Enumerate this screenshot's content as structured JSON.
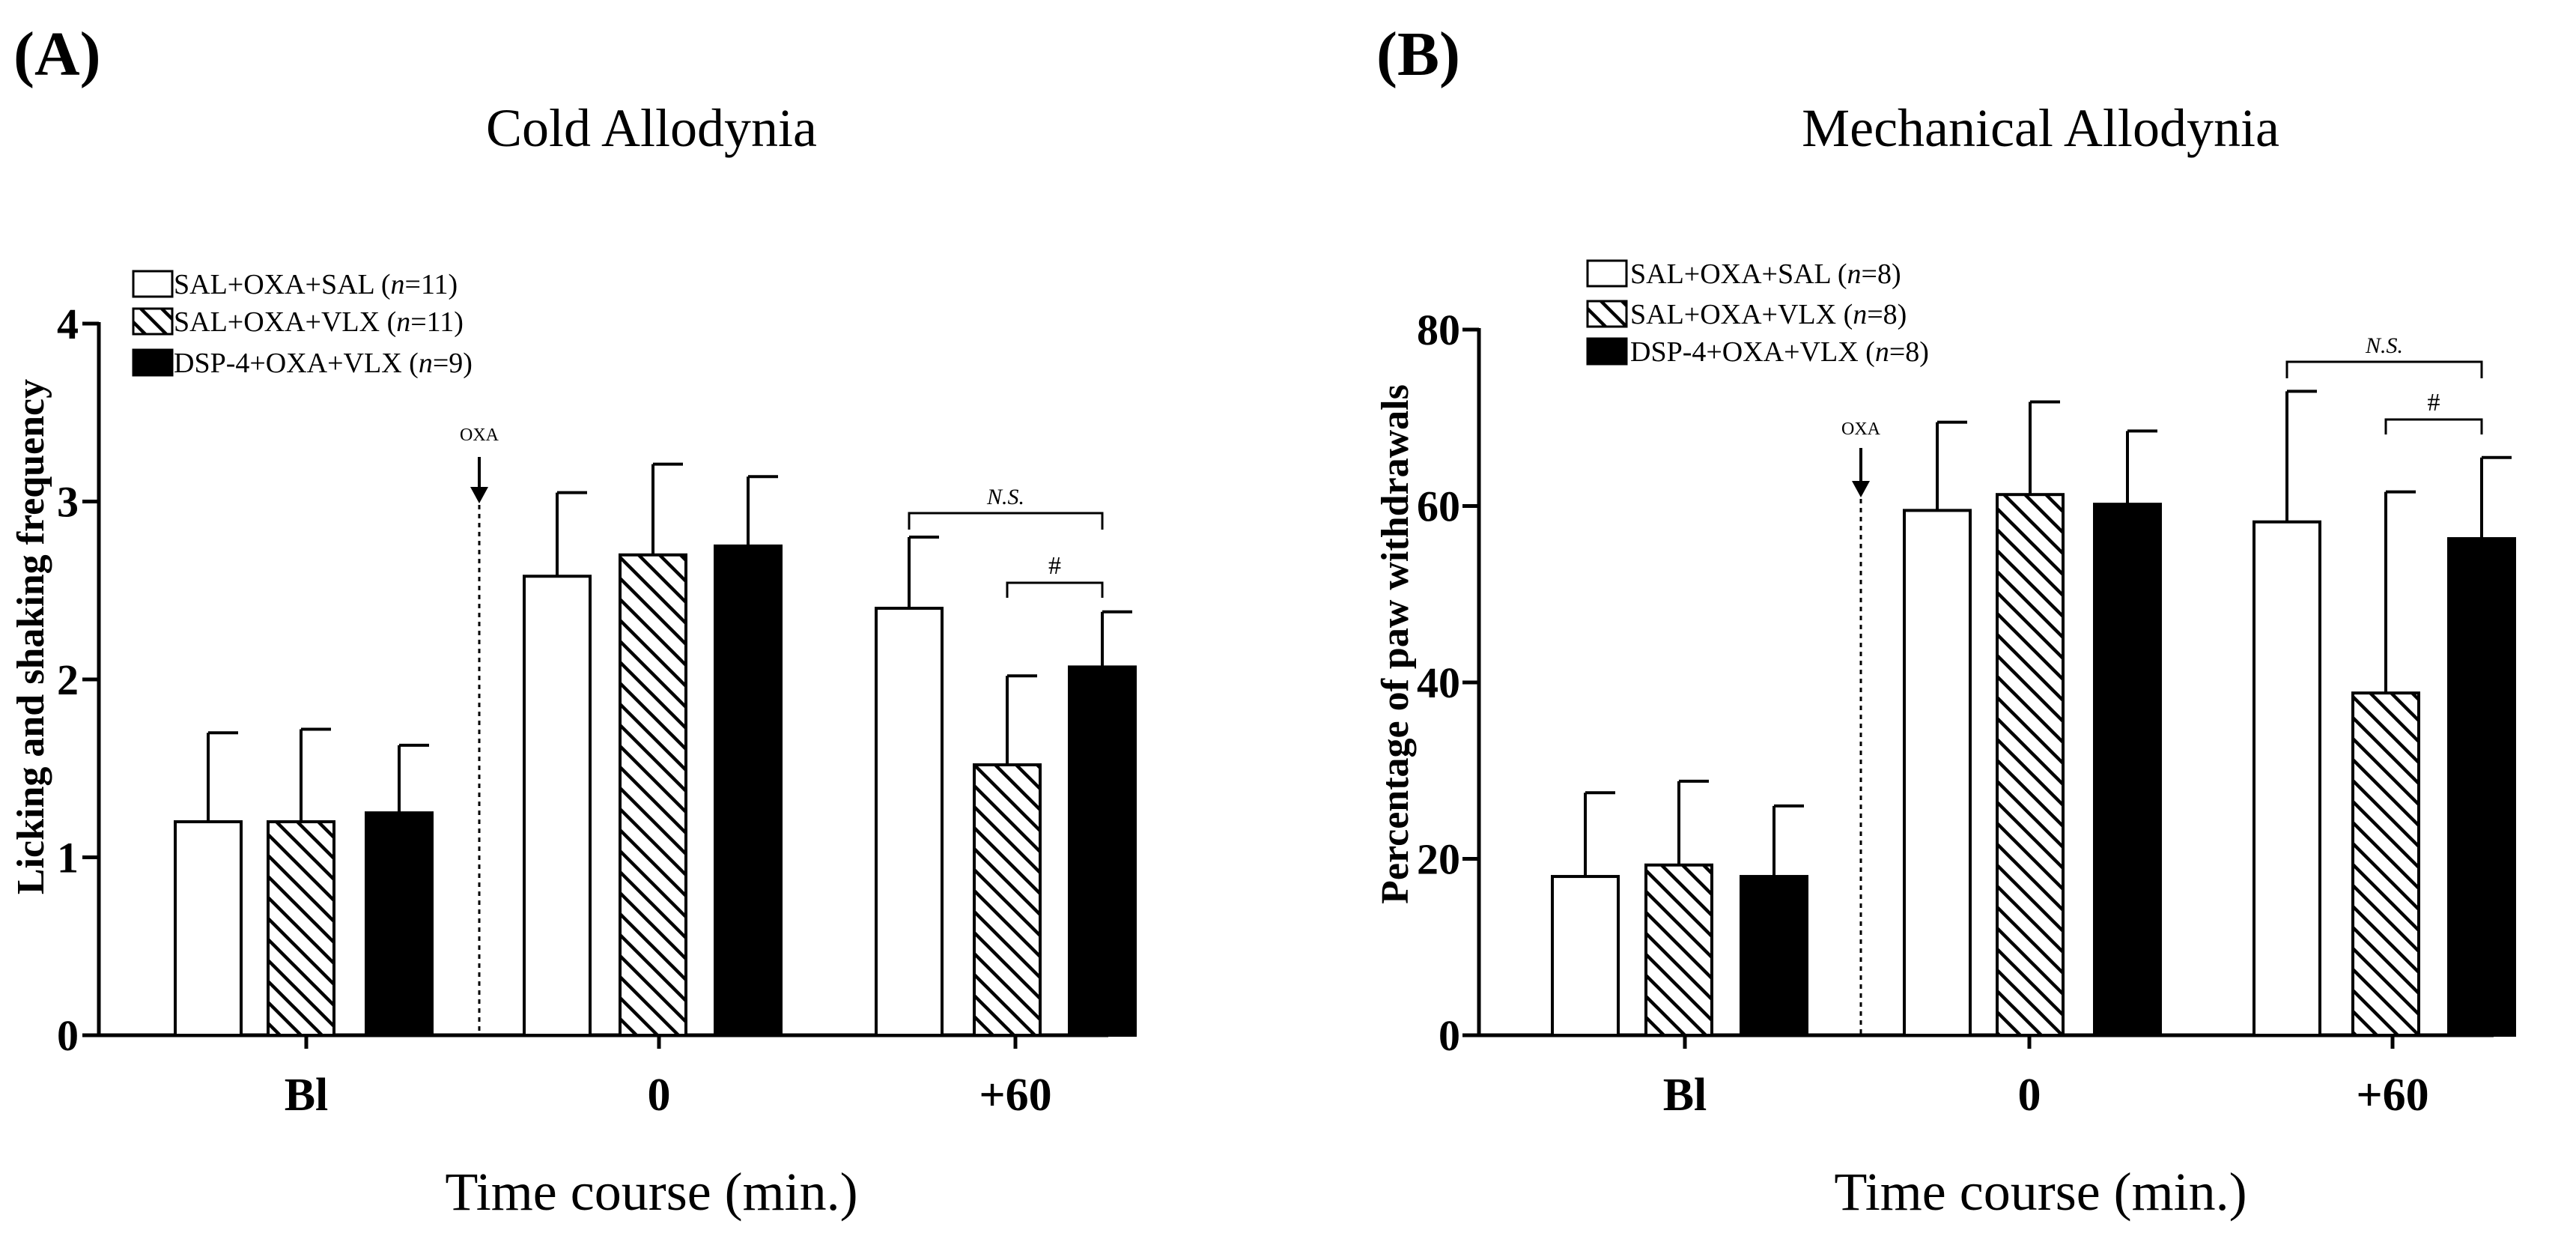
{
  "chart_data": [
    {
      "type": "bar",
      "panel_label": "(A)",
      "title": "Cold Allodynia",
      "xlabel": "Time course (min.)",
      "ylabel": "Licking and shaking frequency",
      "ylim": [
        0,
        4
      ],
      "yticks": [
        "0",
        "1",
        "2",
        "3",
        "4"
      ],
      "categories": [
        "Bl",
        "0",
        "+60"
      ],
      "series": [
        {
          "name": "SAL+OXA+SAL",
          "n_label": "n",
          "n_value": "=11",
          "fill": "white",
          "values": [
            1.2,
            2.58,
            2.4
          ],
          "errors": [
            0.5,
            0.47,
            0.4
          ]
        },
        {
          "name": "SAL+OXA+VLX",
          "n_label": "n",
          "n_value": "=11",
          "fill": "hatch",
          "values": [
            1.2,
            2.7,
            1.52
          ],
          "errors": [
            0.52,
            0.51,
            0.5
          ]
        },
        {
          "name": "DSP-4+OXA+VLX",
          "n_label": "n",
          "n_value": "=9",
          "fill": "black",
          "values": [
            1.25,
            2.75,
            2.07
          ],
          "errors": [
            0.38,
            0.39,
            0.31
          ]
        }
      ],
      "marker": {
        "label": "OXA"
      },
      "annotations": [
        {
          "text": "N.S.",
          "from_series": 0,
          "to_series": 2,
          "category": 2
        },
        {
          "text": "#",
          "from_series": 1,
          "to_series": 2,
          "category": 2
        }
      ]
    },
    {
      "type": "bar",
      "panel_label": "(B)",
      "title": "Mechanical Allodynia",
      "xlabel": "Time course (min.)",
      "ylabel": "Percentage of paw withdrawals",
      "ylim": [
        0,
        80
      ],
      "yticks": [
        "0",
        "20",
        "40",
        "60",
        "80"
      ],
      "categories": [
        "Bl",
        "0",
        "+60"
      ],
      "series": [
        {
          "name": "SAL+OXA+SAL",
          "n_label": "n",
          "n_value": "=8",
          "fill": "white",
          "values": [
            18,
            59.5,
            58.2
          ],
          "errors": [
            9.5,
            10,
            14.8
          ]
        },
        {
          "name": "SAL+OXA+VLX",
          "n_label": "n",
          "n_value": "=8",
          "fill": "hatch",
          "values": [
            19.3,
            61.3,
            38.8
          ],
          "errors": [
            9.5,
            10.5,
            22.8
          ]
        },
        {
          "name": "DSP-4+OXA+VLX",
          "n_label": "n",
          "n_value": "=8",
          "fill": "black",
          "values": [
            18,
            60.2,
            56.3
          ],
          "errors": [
            8,
            8.3,
            9.2
          ]
        }
      ],
      "marker": {
        "label": "OXA"
      },
      "annotations": [
        {
          "text": "N.S.",
          "from_series": 0,
          "to_series": 2,
          "category": 2
        },
        {
          "text": "#",
          "from_series": 1,
          "to_series": 2,
          "category": 2
        }
      ]
    }
  ]
}
